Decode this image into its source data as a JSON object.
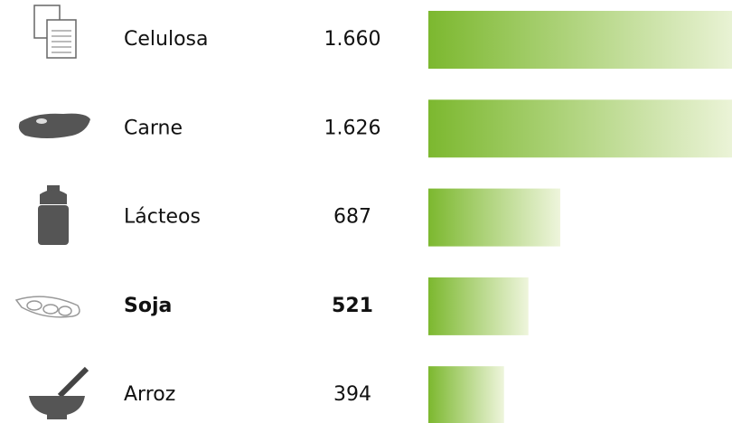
{
  "chart_data": {
    "type": "bar",
    "orientation": "horizontal",
    "categories": [
      "Celulosa",
      "Carne",
      "Lácteos",
      "Soja",
      "Arroz"
    ],
    "values": [
      1660,
      1626,
      687,
      521,
      394
    ],
    "value_labels": [
      "1.660",
      "1.626",
      "687",
      "521",
      "394"
    ],
    "color": "#7cb82f",
    "highlight": 3
  }
}
